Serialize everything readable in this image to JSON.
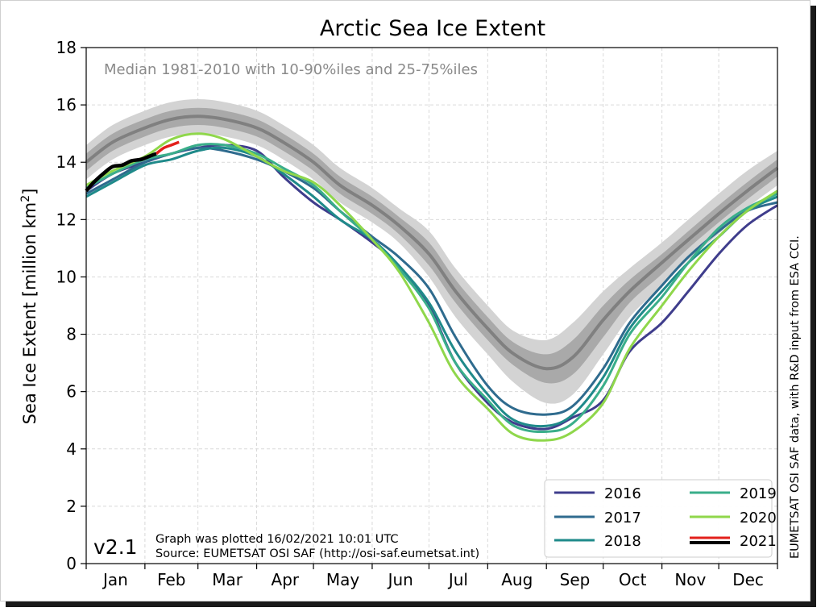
{
  "chart_data": {
    "type": "line",
    "title": "Arctic Sea Ice Extent",
    "ylabel": "Sea Ice Extent [million km",
    "ylabel_sup": "2",
    "ylabel_close": "]",
    "ylim": [
      0,
      18
    ],
    "yticks": [
      0,
      2,
      4,
      6,
      8,
      10,
      12,
      14,
      16,
      18
    ],
    "xlim": [
      1,
      366
    ],
    "month_starts": [
      1,
      32,
      60,
      91,
      121,
      152,
      182,
      213,
      244,
      274,
      305,
      335,
      366
    ],
    "months": [
      "Jan",
      "Feb",
      "Mar",
      "Apr",
      "May",
      "Jun",
      "Jul",
      "Aug",
      "Sep",
      "Oct",
      "Nov",
      "Dec"
    ],
    "grid": true,
    "legend_position": "lower-right",
    "annotation_median": "Median 1981-2010 with 10-90%iles and 25-75%iles",
    "version": "v2.1",
    "plotted_note": "Graph was plotted 16/02/2021 10:01 UTC",
    "source_note": "Source: EUMETSAT OSI SAF (http://osi-saf.eumetsat.int)",
    "right_note": "EUMETSAT OSI SAF data, with R&D input from ESA CCI.",
    "x": [
      1,
      15,
      32,
      46,
      60,
      74,
      91,
      105,
      121,
      135,
      152,
      166,
      182,
      196,
      213,
      227,
      244,
      258,
      274,
      288,
      305,
      319,
      335,
      350,
      366
    ],
    "median": {
      "name": "Median 1981-2010",
      "color": "#808080",
      "values": [
        14.0,
        14.7,
        15.2,
        15.5,
        15.6,
        15.5,
        15.2,
        14.7,
        14.0,
        13.2,
        12.5,
        11.8,
        10.8,
        9.5,
        8.2,
        7.3,
        6.8,
        7.2,
        8.5,
        9.5,
        10.5,
        11.3,
        12.2,
        13.0,
        13.8
      ],
      "p25": [
        13.7,
        14.4,
        14.9,
        15.2,
        15.3,
        15.2,
        14.9,
        14.4,
        13.7,
        12.9,
        12.2,
        11.5,
        10.4,
        9.1,
        7.8,
        6.9,
        6.3,
        6.6,
        7.9,
        9.1,
        10.1,
        11.0,
        11.9,
        12.7,
        13.5
      ],
      "p75": [
        14.3,
        15.0,
        15.5,
        15.8,
        15.9,
        15.8,
        15.5,
        15.0,
        14.3,
        13.5,
        12.8,
        12.1,
        11.2,
        9.9,
        8.6,
        7.7,
        7.3,
        7.8,
        9.0,
        9.9,
        10.8,
        11.6,
        12.5,
        13.3,
        14.1
      ],
      "p10": [
        13.4,
        14.1,
        14.6,
        14.9,
        15.0,
        14.9,
        14.6,
        14.1,
        13.4,
        12.6,
        11.9,
        11.2,
        10.0,
        8.6,
        7.3,
        6.3,
        5.6,
        5.9,
        7.3,
        8.6,
        9.7,
        10.6,
        11.5,
        12.4,
        13.2
      ],
      "p90": [
        14.6,
        15.3,
        15.8,
        16.1,
        16.2,
        16.1,
        15.8,
        15.3,
        14.6,
        13.8,
        13.1,
        12.4,
        11.6,
        10.3,
        9.0,
        8.1,
        7.8,
        8.4,
        9.5,
        10.3,
        11.2,
        12.0,
        12.9,
        13.7,
        14.4
      ],
      "band_inner_color": "#a9a9a9",
      "band_outer_color": "#d3d3d3"
    },
    "series": [
      {
        "name": "2016",
        "color": "#3f3d8c",
        "values": [
          13.0,
          13.6,
          14.0,
          14.3,
          14.5,
          14.6,
          14.4,
          13.5,
          12.6,
          12.0,
          11.2,
          10.4,
          9.0,
          7.0,
          5.6,
          4.9,
          4.7,
          5.1,
          5.7,
          7.4,
          8.4,
          9.5,
          10.8,
          11.8,
          12.5
        ]
      },
      {
        "name": "2017",
        "color": "#2f6b8e",
        "values": [
          12.9,
          13.4,
          14.0,
          14.3,
          14.5,
          14.4,
          14.1,
          13.7,
          13.1,
          12.3,
          11.4,
          10.7,
          9.6,
          7.9,
          6.2,
          5.4,
          5.2,
          5.5,
          6.8,
          8.4,
          9.7,
          10.7,
          11.6,
          12.3,
          12.6
        ]
      },
      {
        "name": "2018",
        "color": "#1f8a8a",
        "values": [
          12.8,
          13.3,
          13.9,
          14.1,
          14.4,
          14.5,
          14.2,
          13.6,
          12.8,
          12.0,
          11.3,
          10.4,
          9.1,
          7.4,
          5.9,
          5.0,
          4.8,
          5.2,
          6.5,
          8.2,
          9.5,
          10.5,
          11.4,
          12.3,
          12.8
        ]
      },
      {
        "name": "2019",
        "color": "#3aae8a",
        "values": [
          13.1,
          13.6,
          14.1,
          14.3,
          14.6,
          14.6,
          14.3,
          13.8,
          13.2,
          12.3,
          11.3,
          10.3,
          8.9,
          7.0,
          5.7,
          4.8,
          4.6,
          4.9,
          6.2,
          8.0,
          9.3,
          10.5,
          11.7,
          12.4,
          12.9
        ]
      },
      {
        "name": "2020",
        "color": "#8fd74b",
        "values": [
          13.2,
          13.7,
          14.2,
          14.8,
          15.0,
          14.8,
          14.2,
          13.7,
          13.3,
          12.5,
          11.3,
          10.2,
          8.4,
          6.6,
          5.4,
          4.5,
          4.3,
          4.6,
          5.6,
          7.5,
          9.0,
          10.2,
          11.4,
          12.3,
          13.0
        ]
      }
    ],
    "series_2021": {
      "name": "2021",
      "black_x": [
        1,
        5,
        10,
        15,
        20,
        25,
        30,
        34,
        38
      ],
      "black_values": [
        13.0,
        13.3,
        13.6,
        13.85,
        13.9,
        14.05,
        14.1,
        14.2,
        14.3
      ],
      "red_x": [
        38,
        42,
        46,
        50
      ],
      "red_values": [
        14.3,
        14.5,
        14.6,
        14.7
      ],
      "color_red": "#e3201b",
      "color_black": "#000000"
    }
  }
}
